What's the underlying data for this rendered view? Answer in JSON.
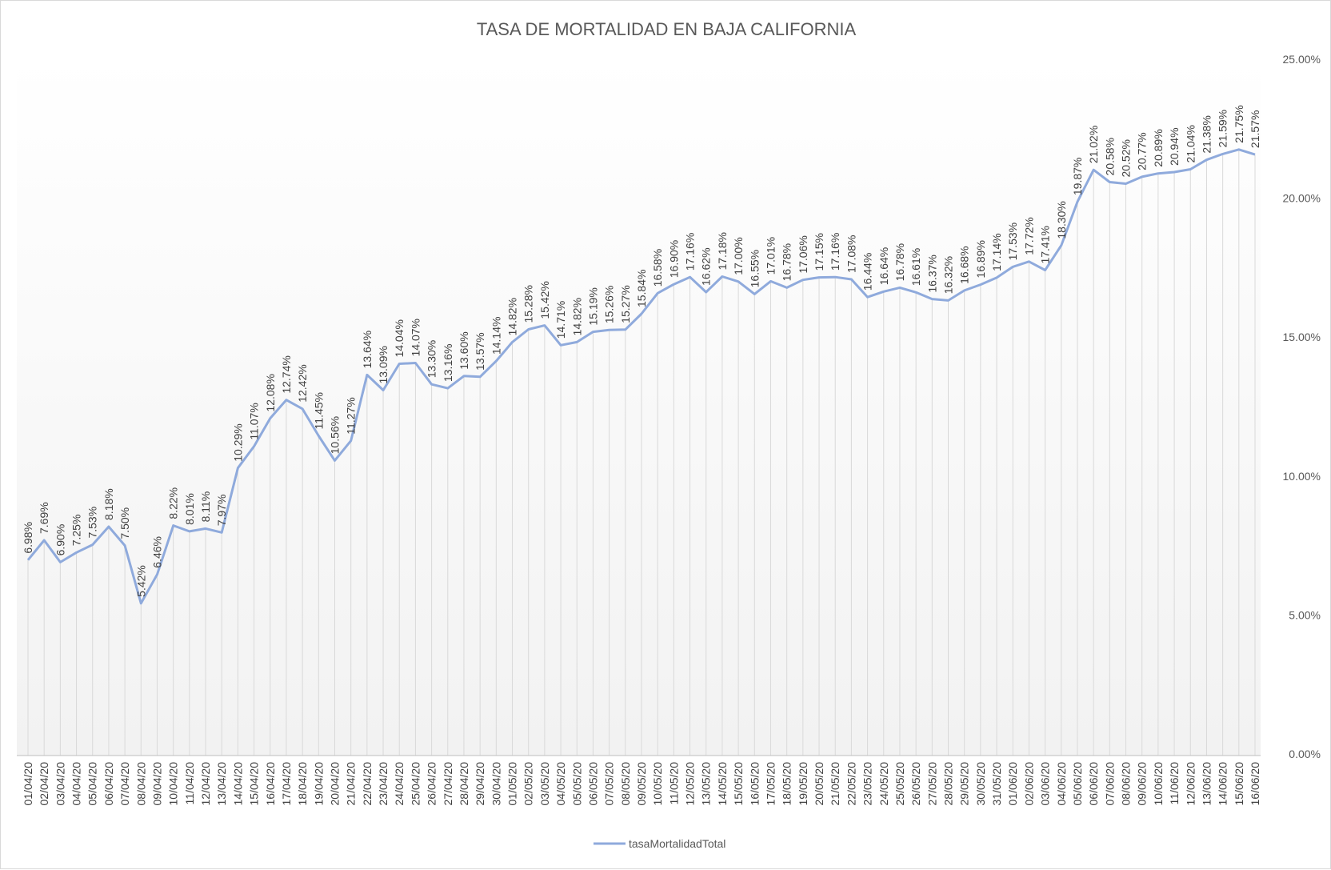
{
  "chart_data": {
    "type": "line",
    "title": "TASA DE MORTALIDAD EN BAJA CALIFORNIA",
    "xlabel": "",
    "ylabel": "",
    "ylim": [
      0,
      25
    ],
    "y_ticks": [
      0,
      5,
      10,
      15,
      20,
      25
    ],
    "y_tick_labels": [
      "0.00%",
      "5.00%",
      "10.00%",
      "15.00%",
      "20.00%",
      "25.00%"
    ],
    "y_axis_side": "right",
    "legend_position": "bottom",
    "colors": {
      "series": "#8FAADC",
      "gridline": "#d9d9d9",
      "axis": "#bfbfbf"
    },
    "categories": [
      "01/04/20",
      "02/04/20",
      "03/04/20",
      "04/04/20",
      "05/04/20",
      "06/04/20",
      "07/04/20",
      "08/04/20",
      "09/04/20",
      "10/04/20",
      "11/04/20",
      "12/04/20",
      "13/04/20",
      "14/04/20",
      "15/04/20",
      "16/04/20",
      "17/04/20",
      "18/04/20",
      "19/04/20",
      "20/04/20",
      "21/04/20",
      "22/04/20",
      "23/04/20",
      "24/04/20",
      "25/04/20",
      "26/04/20",
      "27/04/20",
      "28/04/20",
      "29/04/20",
      "30/04/20",
      "01/05/20",
      "02/05/20",
      "03/05/20",
      "04/05/20",
      "05/05/20",
      "06/05/20",
      "07/05/20",
      "08/05/20",
      "09/05/20",
      "10/05/20",
      "11/05/20",
      "12/05/20",
      "13/05/20",
      "14/05/20",
      "15/05/20",
      "16/05/20",
      "17/05/20",
      "18/05/20",
      "19/05/20",
      "20/05/20",
      "21/05/20",
      "22/05/20",
      "23/05/20",
      "24/05/20",
      "25/05/20",
      "26/05/20",
      "27/05/20",
      "28/05/20",
      "29/05/20",
      "30/05/20",
      "31/05/20",
      "01/06/20",
      "02/06/20",
      "03/06/20",
      "04/06/20",
      "05/06/20",
      "06/06/20",
      "07/06/20",
      "08/06/20",
      "09/06/20",
      "10/06/20",
      "11/06/20",
      "12/06/20",
      "13/06/20",
      "14/06/20",
      "15/06/20",
      "16/06/20"
    ],
    "series": [
      {
        "name": "tasaMortalidadTotal",
        "values": [
          6.98,
          7.69,
          6.9,
          7.25,
          7.53,
          8.18,
          7.5,
          5.42,
          6.46,
          8.22,
          8.01,
          8.11,
          7.97,
          10.29,
          11.07,
          12.08,
          12.74,
          12.42,
          11.45,
          10.56,
          11.27,
          13.64,
          13.09,
          14.04,
          14.07,
          13.3,
          13.16,
          13.6,
          13.57,
          14.14,
          14.82,
          15.28,
          15.42,
          14.71,
          14.82,
          15.19,
          15.26,
          15.27,
          15.84,
          16.58,
          16.9,
          17.16,
          16.62,
          17.18,
          17.0,
          16.55,
          17.01,
          16.78,
          17.06,
          17.15,
          17.16,
          17.08,
          16.44,
          16.64,
          16.78,
          16.61,
          16.37,
          16.32,
          16.68,
          16.89,
          17.14,
          17.53,
          17.72,
          17.41,
          18.3,
          19.87,
          21.02,
          20.58,
          20.52,
          20.77,
          20.89,
          20.94,
          21.04,
          21.38,
          21.59,
          21.75,
          21.57
        ],
        "labels": [
          "6.98%",
          "7.69%",
          "6.90%",
          "7.25%",
          "7.53%",
          "8.18%",
          "7.50%",
          "5.42%",
          "6.46%",
          "8.22%",
          "8.01%",
          "8.11%",
          "7.97%",
          "10.29%",
          "11.07%",
          "12.08%",
          "12.74%",
          "12.42%",
          "11.45%",
          "10.56%",
          "11.27%",
          "13.64%",
          "13.09%",
          "14.04%",
          "14.07%",
          "13.30%",
          "13.16%",
          "13.60%",
          "13.57%",
          "14.14%",
          "14.82%",
          "15.28%",
          "15.42%",
          "14.71%",
          "14.82%",
          "15.19%",
          "15.26%",
          "15.27%",
          "15.84%",
          "16.58%",
          "16.90%",
          "17.16%",
          "16.62%",
          "17.18%",
          "17.00%",
          "16.55%",
          "17.01%",
          "16.78%",
          "17.06%",
          "17.15%",
          "17.16%",
          "17.08%",
          "16.44%",
          "16.64%",
          "16.78%",
          "16.61%",
          "16.37%",
          "16.32%",
          "16.68%",
          "16.89%",
          "17.14%",
          "17.53%",
          "17.72%",
          "17.41%",
          "18.30%",
          "19.87%",
          "21.02%",
          "20.58%",
          "20.52%",
          "20.77%",
          "20.89%",
          "20.94%",
          "21.04%",
          "21.38%",
          "21.59%",
          "21.75%",
          "21.57%"
        ]
      }
    ]
  }
}
